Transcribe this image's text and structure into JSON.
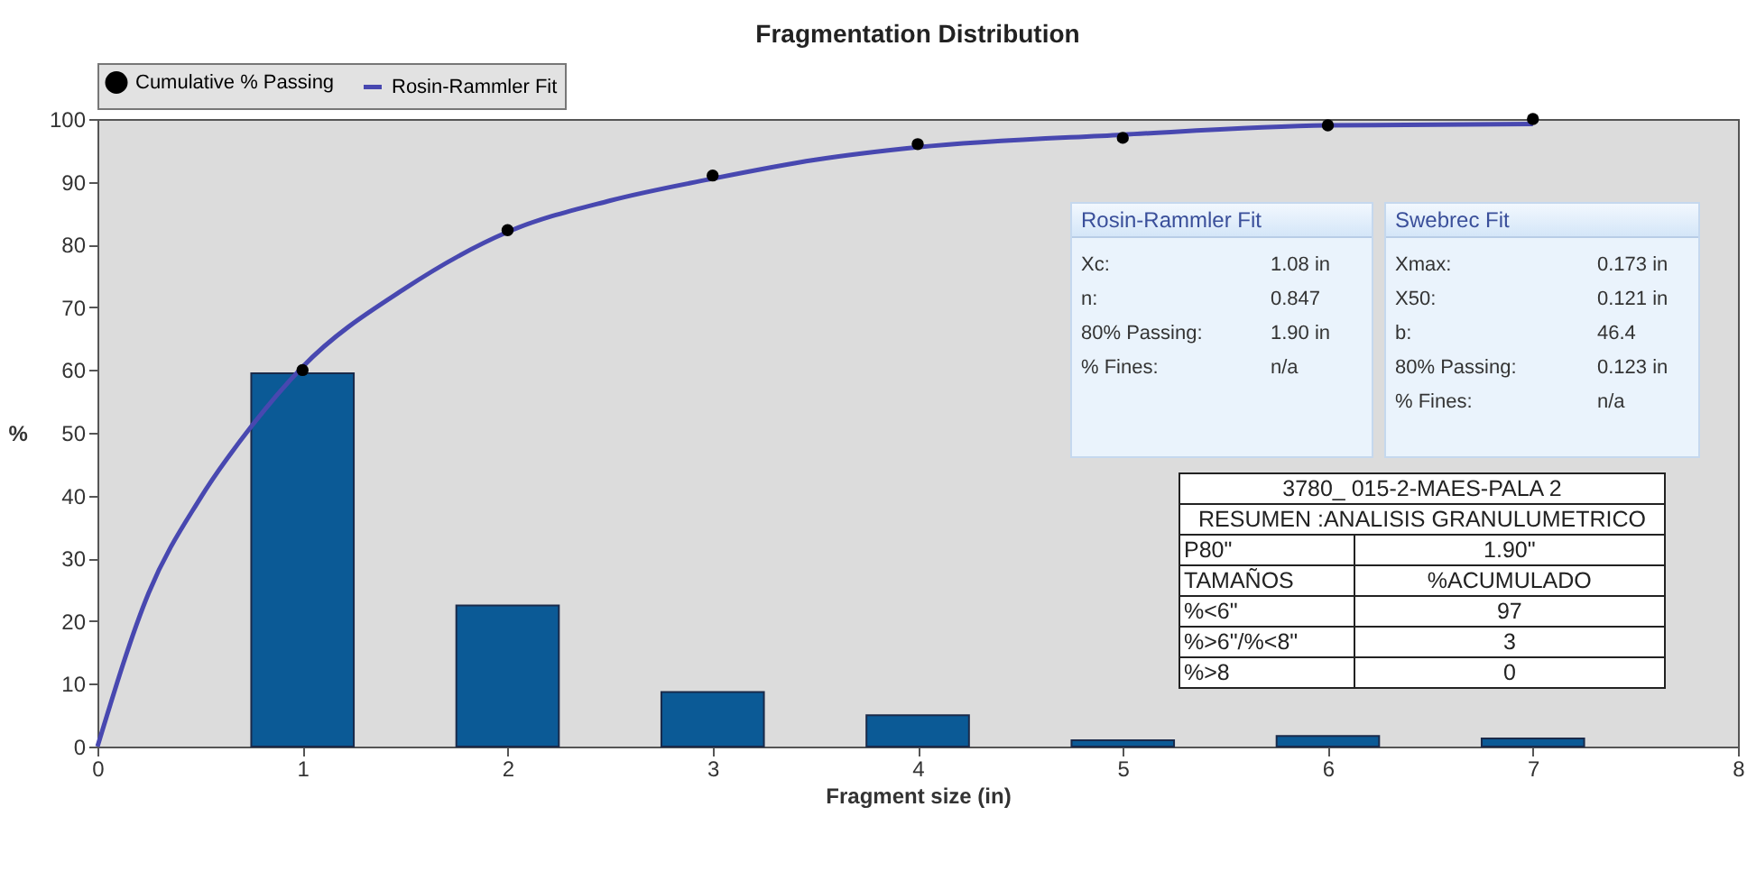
{
  "chart_data": {
    "type": "bar",
    "title": "Fragmentation Distribution",
    "xlabel": "Fragment size (in)",
    "ylabel": "%",
    "xlim": [
      0,
      8
    ],
    "xticks": [
      0,
      1,
      2,
      3,
      4,
      5,
      6,
      7,
      8
    ],
    "ylim": [
      0,
      100
    ],
    "yticks": [
      0,
      10,
      20,
      30,
      40,
      50,
      60,
      70,
      80,
      90,
      100
    ],
    "grid": false,
    "legend": "top left",
    "series": [
      {
        "color": "#0b5a96",
        "x": [
          1,
          2,
          3,
          4,
          5,
          6,
          7
        ],
        "values": [
          59.5,
          22.5,
          8.7,
          5,
          1,
          1.7,
          1.3
        ]
      },
      {
        "type": "scatter",
        "name": "Cumulative % Passing",
        "color": "#000000",
        "x": [
          1,
          2,
          3,
          4,
          5,
          6,
          7
        ],
        "values": [
          60,
          82.3,
          91,
          96,
          97,
          99,
          100
        ]
      },
      {
        "type": "line",
        "name": "Rosin-Rammler Fit",
        "color": "#4848b0",
        "x": [
          0,
          0.25,
          0.5,
          0.75,
          1,
          1.5,
          2,
          2.5,
          3,
          3.5,
          4,
          5,
          6,
          7
        ],
        "values": [
          0,
          24.5,
          39.5,
          51,
          60.5,
          73,
          82,
          87,
          90.5,
          93.5,
          95.5,
          97.5,
          99,
          99.2
        ]
      }
    ],
    "annotations": [
      "Rosin-Rammler Fit",
      "Xc:",
      "1.08 in",
      "n:",
      "0.847",
      "80% Passing:",
      "1.90 in",
      "% Fines:",
      "n/a",
      "Swebrec Fit",
      "Xmax:",
      "0.173 in",
      "X50:",
      "0.121 in",
      "b:",
      "46.4",
      "80% Passing:",
      "0.123 in",
      "% Fines:",
      "n/a",
      "3780_ 015-2-MAES-PALA 2",
      "RESUMEN :ANALISIS GRANULUMETRICO",
      "P80\"",
      "1.90\"",
      "TAMAÑOS",
      "%ACUMULADO",
      "%<6\"",
      "97",
      "%>6\"/%<8\"",
      "3",
      "%>8",
      "0"
    ]
  }
}
